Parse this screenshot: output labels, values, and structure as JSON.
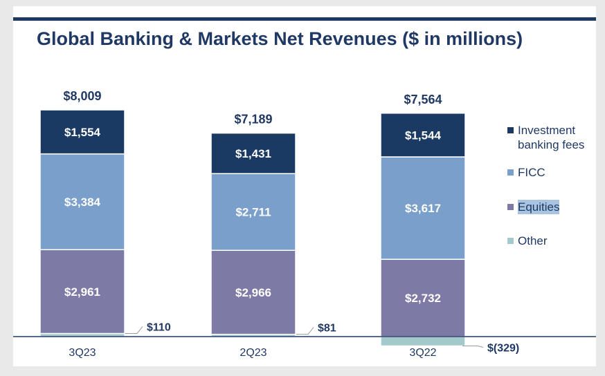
{
  "title": "Global Banking & Markets Net Revenues ($ in millions)",
  "colors": {
    "investment_banking_fees": "#1a3a63",
    "ficc": "#7a9fcb",
    "equities": "#7d7ba6",
    "other": "#a3c9cc",
    "axis": "#1f3864",
    "title": "#1f3864"
  },
  "chart_data": {
    "type": "bar",
    "stacked": true,
    "categories": [
      "3Q23",
      "2Q23",
      "3Q22"
    ],
    "series": [
      {
        "name": "Other",
        "values": [
          110,
          81,
          -329
        ],
        "labels": [
          "$110",
          "$81",
          "$(329)"
        ]
      },
      {
        "name": "Equities",
        "values": [
          2961,
          2966,
          2732
        ],
        "labels": [
          "$2,961",
          "$2,966",
          "$2,732"
        ]
      },
      {
        "name": "FICC",
        "values": [
          3384,
          2711,
          3617
        ],
        "labels": [
          "$3,384",
          "$2,711",
          "$3,617"
        ]
      },
      {
        "name": "Investment banking fees",
        "values": [
          1554,
          1431,
          1544
        ],
        "labels": [
          "$1,554",
          "$1,431",
          "$1,544"
        ]
      }
    ],
    "totals": [
      8009,
      7189,
      7564
    ],
    "total_labels": [
      "$8,009",
      "$7,189",
      "$7,564"
    ],
    "legend": {
      "placement": "right",
      "entries": [
        "Investment banking fees",
        "FICC",
        "Equities",
        "Other"
      ]
    },
    "grid": false
  }
}
